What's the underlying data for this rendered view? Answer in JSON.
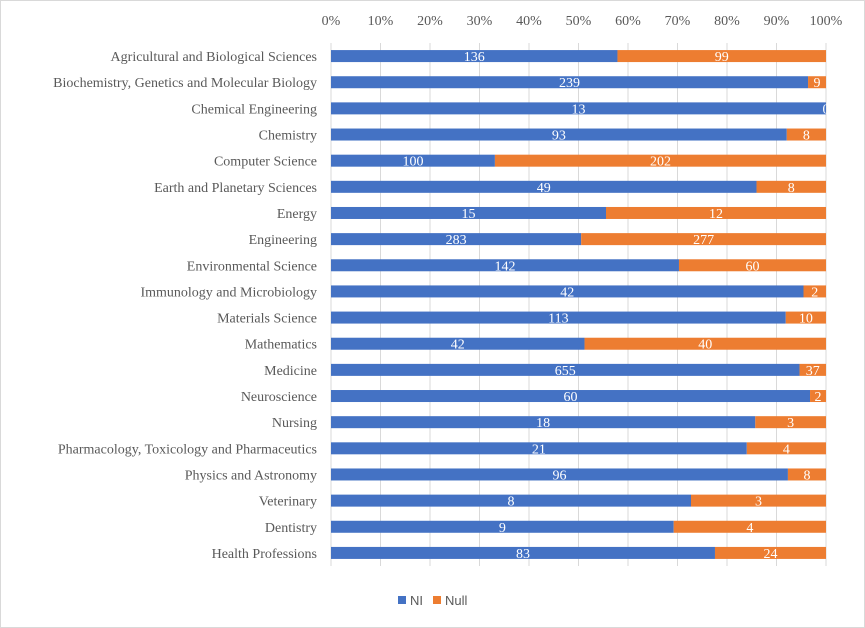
{
  "chart_data": {
    "type": "bar",
    "orientation": "horizontal",
    "stacking": "percent",
    "categories": [
      "Agricultural and Biological Sciences",
      "Biochemistry, Genetics and Molecular Biology",
      "Chemical Engineering",
      "Chemistry",
      "Computer Science",
      "Earth and Planetary Sciences",
      "Energy",
      "Engineering",
      "Environmental Science",
      "Immunology and Microbiology",
      "Materials Science",
      "Mathematics",
      "Medicine",
      "Neuroscience",
      "Nursing",
      "Pharmacology, Toxicology and Pharmaceutics",
      "Physics and Astronomy",
      "Veterinary",
      "Dentistry",
      "Health Professions"
    ],
    "series": [
      {
        "name": "NI",
        "color": "#4472C4",
        "values": [
          136,
          239,
          13,
          93,
          100,
          49,
          15,
          283,
          142,
          42,
          113,
          42,
          655,
          60,
          18,
          21,
          96,
          8,
          9,
          83
        ]
      },
      {
        "name": "Null",
        "color": "#ED7D31",
        "values": [
          99,
          9,
          0,
          8,
          202,
          8,
          12,
          277,
          60,
          2,
          10,
          40,
          37,
          2,
          3,
          4,
          8,
          3,
          4,
          24
        ]
      }
    ],
    "xticks": [
      "0%",
      "10%",
      "20%",
      "30%",
      "40%",
      "50%",
      "60%",
      "70%",
      "80%",
      "90%",
      "100%"
    ],
    "xlim": [
      0,
      100
    ],
    "xaxis_position": "top",
    "grid": true,
    "data_labels": true,
    "legend": "bottom"
  }
}
